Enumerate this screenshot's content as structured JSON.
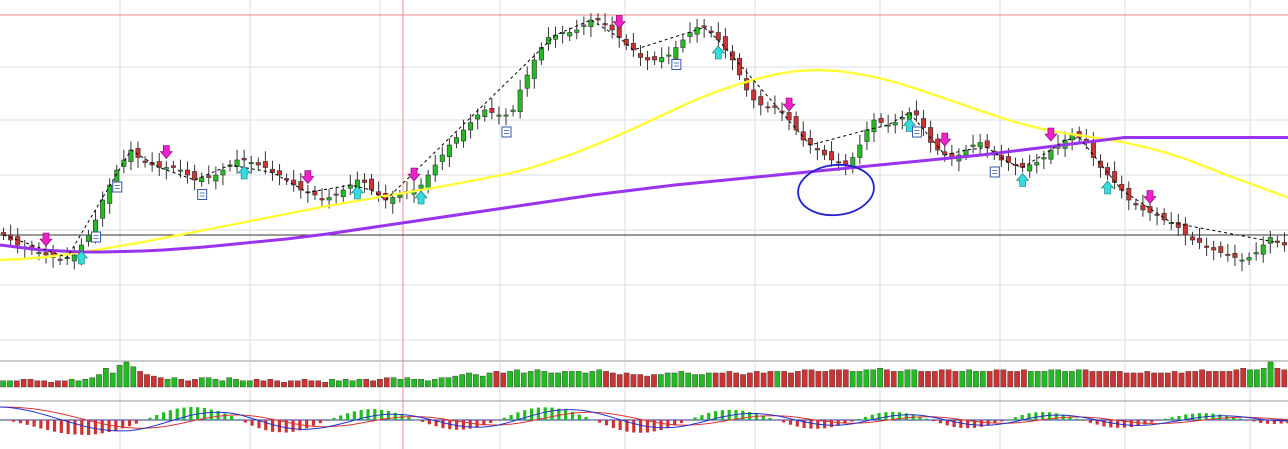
{
  "chart_data": {
    "type": "candlestick",
    "title": "",
    "xlabel": "",
    "ylabel": "",
    "grid": true,
    "legend": "none",
    "price_ylim": [
      0,
      100
    ],
    "colors": {
      "up": "#22bb22",
      "down": "#cc3333",
      "ma_short": "#ffff33",
      "ma_long": "#9933ee",
      "zigzag": "#000000",
      "buy_marker": "#33dddd",
      "sell_marker": "#ee22cc",
      "annotation_circle": "#2222cc",
      "grid": "#d8dde8",
      "cursor": "#ee8888",
      "macd_line": "#2233cc",
      "signal_line": "#dd3333",
      "separator": "#999999"
    },
    "horizontal_level": 57,
    "price_closes": [
      57,
      56,
      55,
      54.5,
      54,
      53.5,
      53,
      52.5,
      52,
      52.5,
      53,
      55,
      57,
      60,
      64,
      67,
      70,
      72,
      74,
      72.5,
      71.5,
      71,
      70.5,
      70.5,
      70.5,
      70,
      69,
      68,
      68.5,
      68.5,
      69,
      70,
      71,
      72,
      72,
      71.5,
      71,
      70.5,
      69.5,
      69,
      68,
      67,
      66,
      65.5,
      65,
      64,
      64.5,
      65,
      66,
      67,
      68,
      67.5,
      66,
      65,
      64,
      64.5,
      65,
      65.5,
      66,
      67,
      69,
      71,
      73,
      75,
      76.5,
      78,
      79.5,
      81,
      82,
      81.5,
      81,
      81,
      82,
      86,
      89,
      92,
      94.5,
      96.5,
      97,
      97.5,
      97.5,
      98,
      99,
      100,
      100,
      99,
      98,
      96.5,
      95,
      94,
      92.5,
      92,
      92,
      92.5,
      93,
      94.5,
      96,
      97.5,
      98.5,
      98.5,
      97.5,
      96,
      94,
      92,
      89,
      86,
      84,
      83,
      82.5,
      82.5,
      81.5,
      80,
      78,
      76,
      75,
      74,
      73,
      72,
      71.5,
      71,
      72.5,
      75,
      78,
      80,
      79.5,
      79,
      79.5,
      80.5,
      81.5,
      81,
      78.5,
      75.5,
      74,
      73,
      72.5,
      73,
      74,
      75,
      75.5,
      74.5,
      73,
      72,
      71.5,
      71,
      70.5,
      71,
      71.5,
      72.5,
      74,
      75,
      76,
      77,
      76.5,
      75.5,
      72.5,
      70.5,
      69,
      67.5,
      66,
      64,
      63,
      62,
      61.5,
      61,
      60,
      59.5,
      58.5,
      57,
      56,
      55.5,
      54.5,
      54,
      53.5,
      53,
      52.5,
      52,
      52.5,
      53.5,
      55,
      56.5,
      55.5,
      55
    ],
    "ma_short_values": [
      52,
      52.2,
      52.5,
      53,
      53.6,
      54.2,
      54.9,
      55.6,
      56.4,
      57.2,
      58,
      58.8,
      59.6,
      60.4,
      61.2,
      62,
      62.8,
      63.5,
      64.2,
      64.9,
      65.6,
      66.3,
      67,
      67.8,
      68.6,
      69.4,
      70.5,
      71.8,
      73.2,
      74.8,
      76.5,
      78.3,
      80.2,
      82.1,
      84,
      85.6,
      87,
      88.2,
      89.2,
      89.8,
      90,
      89.8,
      89.2,
      88.4,
      87.3,
      86,
      84.6,
      83.2,
      81.8,
      80.4,
      79.2,
      78.2,
      77.4,
      76.8,
      76.2,
      75.5,
      74.6,
      73.5,
      72.2,
      70.6,
      69,
      67.5,
      66,
      64.5
    ],
    "ma_long_values": [
      55,
      54.5,
      54,
      53.8,
      53.6,
      53.6,
      53.7,
      53.8,
      54,
      54.3,
      54.6,
      55,
      55.4,
      55.8,
      56.2,
      56.7,
      57.2,
      57.8,
      58.4,
      59,
      59.6,
      60.2,
      60.8,
      61.4,
      62,
      62.6,
      63.2,
      63.8,
      64.4,
      65,
      65.5,
      66,
      66.5,
      67,
      67.4,
      67.8,
      68.2,
      68.6,
      69,
      69.4,
      69.8,
      70.2,
      70.6,
      71,
      71.4,
      71.8,
      72.2,
      72.6,
      73,
      73.5,
      74,
      74.5,
      75,
      75.5,
      76,
      76.5,
      76.5,
      76.5,
      76.5,
      76.5,
      76.5,
      76.5,
      76.5,
      76.5
    ],
    "zigzag_bar_indices": [
      0,
      9,
      18,
      22,
      27,
      32,
      38,
      43,
      49,
      52,
      54,
      78,
      83,
      87,
      89,
      99,
      101,
      114,
      122,
      125,
      128,
      133,
      136,
      139,
      142,
      144,
      148,
      150,
      152,
      158,
      165,
      180,
      184,
      187
    ],
    "sell_marker_bar_indices": [
      6,
      23,
      43,
      58,
      87,
      111,
      133,
      148,
      162,
      184
    ],
    "buy_marker_bar_indices": [
      11,
      34,
      50,
      59,
      101,
      128,
      144,
      156,
      182
    ],
    "note_marker_bar_indices": [
      13,
      16,
      28,
      71,
      95,
      129,
      140
    ],
    "volume_values": [
      4,
      4,
      4,
      5,
      5,
      4,
      4,
      3,
      4,
      4,
      5,
      4,
      5,
      6,
      8,
      12,
      9,
      14,
      16,
      13,
      10,
      8,
      7,
      6,
      5,
      6,
      5,
      4,
      5,
      6,
      6,
      5,
      4,
      6,
      5,
      4,
      4,
      5,
      4,
      5,
      4,
      3,
      4,
      4,
      5,
      4,
      4,
      3,
      5,
      4,
      5,
      4,
      5,
      5,
      4,
      5,
      6,
      6,
      5,
      6,
      5,
      5,
      4,
      5,
      6,
      6,
      7,
      8,
      9,
      8,
      7,
      9,
      10,
      9,
      10,
      11,
      9,
      10,
      11,
      10,
      9,
      9,
      10,
      10,
      10,
      9,
      10,
      11,
      10,
      9,
      8,
      9,
      8,
      8,
      7,
      8,
      8,
      9,
      9,
      10,
      9,
      8,
      8,
      9,
      9,
      9,
      10,
      9,
      8,
      9,
      10,
      9,
      10,
      10,
      10,
      9,
      10,
      11,
      11,
      10,
      10,
      11,
      11,
      11,
      10,
      10,
      11,
      11,
      12,
      11,
      10,
      10,
      11,
      11,
      10,
      10,
      10,
      11,
      11,
      10,
      10,
      11,
      10,
      10,
      10,
      11,
      11,
      10,
      10,
      11,
      10,
      10,
      10,
      11,
      11,
      10,
      10,
      11,
      11,
      10,
      10,
      10,
      10,
      10,
      9,
      9,
      9,
      10,
      9,
      9,
      9,
      10,
      9,
      10,
      10,
      11,
      10,
      10,
      10,
      10,
      11,
      12,
      11,
      11,
      12,
      16,
      12,
      11
    ],
    "macd_ylim": [
      -1,
      1
    ],
    "macd_values": [
      0.5,
      0.49,
      0.46,
      0.42,
      0.37,
      0.31,
      0.24,
      0.17,
      0.09,
      0.01,
      -0.07,
      -0.14,
      -0.21,
      -0.28,
      -0.33,
      -0.37,
      -0.4,
      -0.42,
      -0.42,
      -0.41,
      -0.38,
      -0.33,
      -0.27,
      -0.2,
      -0.12,
      -0.04,
      0.04,
      0.11,
      0.18,
      0.23,
      0.27,
      0.29,
      0.3,
      0.29,
      0.26,
      0.21,
      0.14,
      0.06,
      -0.02,
      -0.1,
      -0.18,
      -0.24,
      -0.3,
      -0.34,
      -0.36,
      -0.36,
      -0.34,
      -0.31,
      -0.27,
      -0.21,
      -0.15,
      -0.08,
      -0.01,
      0.06,
      0.12,
      0.17,
      0.2,
      0.22,
      0.22,
      0.21,
      0.18,
      0.14,
      0.09,
      0.03,
      -0.03,
      -0.1,
      -0.16,
      -0.21,
      -0.25,
      -0.27,
      -0.28,
      -0.27,
      -0.24,
      -0.2,
      -0.14,
      -0.07,
      0.01,
      0.09,
      0.17,
      0.24,
      0.3,
      0.35,
      0.38,
      0.4,
      0.4,
      0.38,
      0.35,
      0.3,
      0.24,
      0.17,
      0.09,
      0.01,
      -0.07,
      -0.14,
      -0.2,
      -0.25,
      -0.28,
      -0.3,
      -0.3,
      -0.28,
      -0.25,
      -0.2,
      -0.14,
      -0.08,
      -0.01,
      0.06,
      0.12,
      0.17,
      0.21,
      0.24,
      0.25,
      0.25,
      0.23,
      0.2,
      0.16,
      0.11,
      0.05,
      -0.01,
      -0.07,
      -0.12,
      -0.16,
      -0.19,
      -0.2,
      -0.2,
      -0.18,
      -0.15,
      -0.1,
      -0.05,
      0.01,
      0.07,
      0.12,
      0.16,
      0.19,
      0.2,
      0.2,
      0.18,
      0.15,
      0.1,
      0.05,
      -0.01,
      -0.07,
      -0.12,
      -0.16,
      -0.19,
      -0.2,
      -0.2,
      -0.18,
      -0.15,
      -0.11,
      -0.06,
      0,
      0.06,
      0.11,
      0.15,
      0.18,
      0.19,
      0.19,
      0.17,
      0.14,
      0.1,
      0.05,
      0,
      -0.06,
      -0.11,
      -0.15,
      -0.18,
      -0.2,
      -0.21,
      -0.2,
      -0.18,
      -0.15,
      -0.11,
      -0.07,
      -0.03,
      0.02,
      0.06,
      0.1,
      0.13,
      0.15,
      0.16,
      0.16,
      0.15,
      0.13,
      0.1,
      0.07,
      0.03,
      0,
      -0.02,
      -0.03,
      -0.04
    ]
  }
}
